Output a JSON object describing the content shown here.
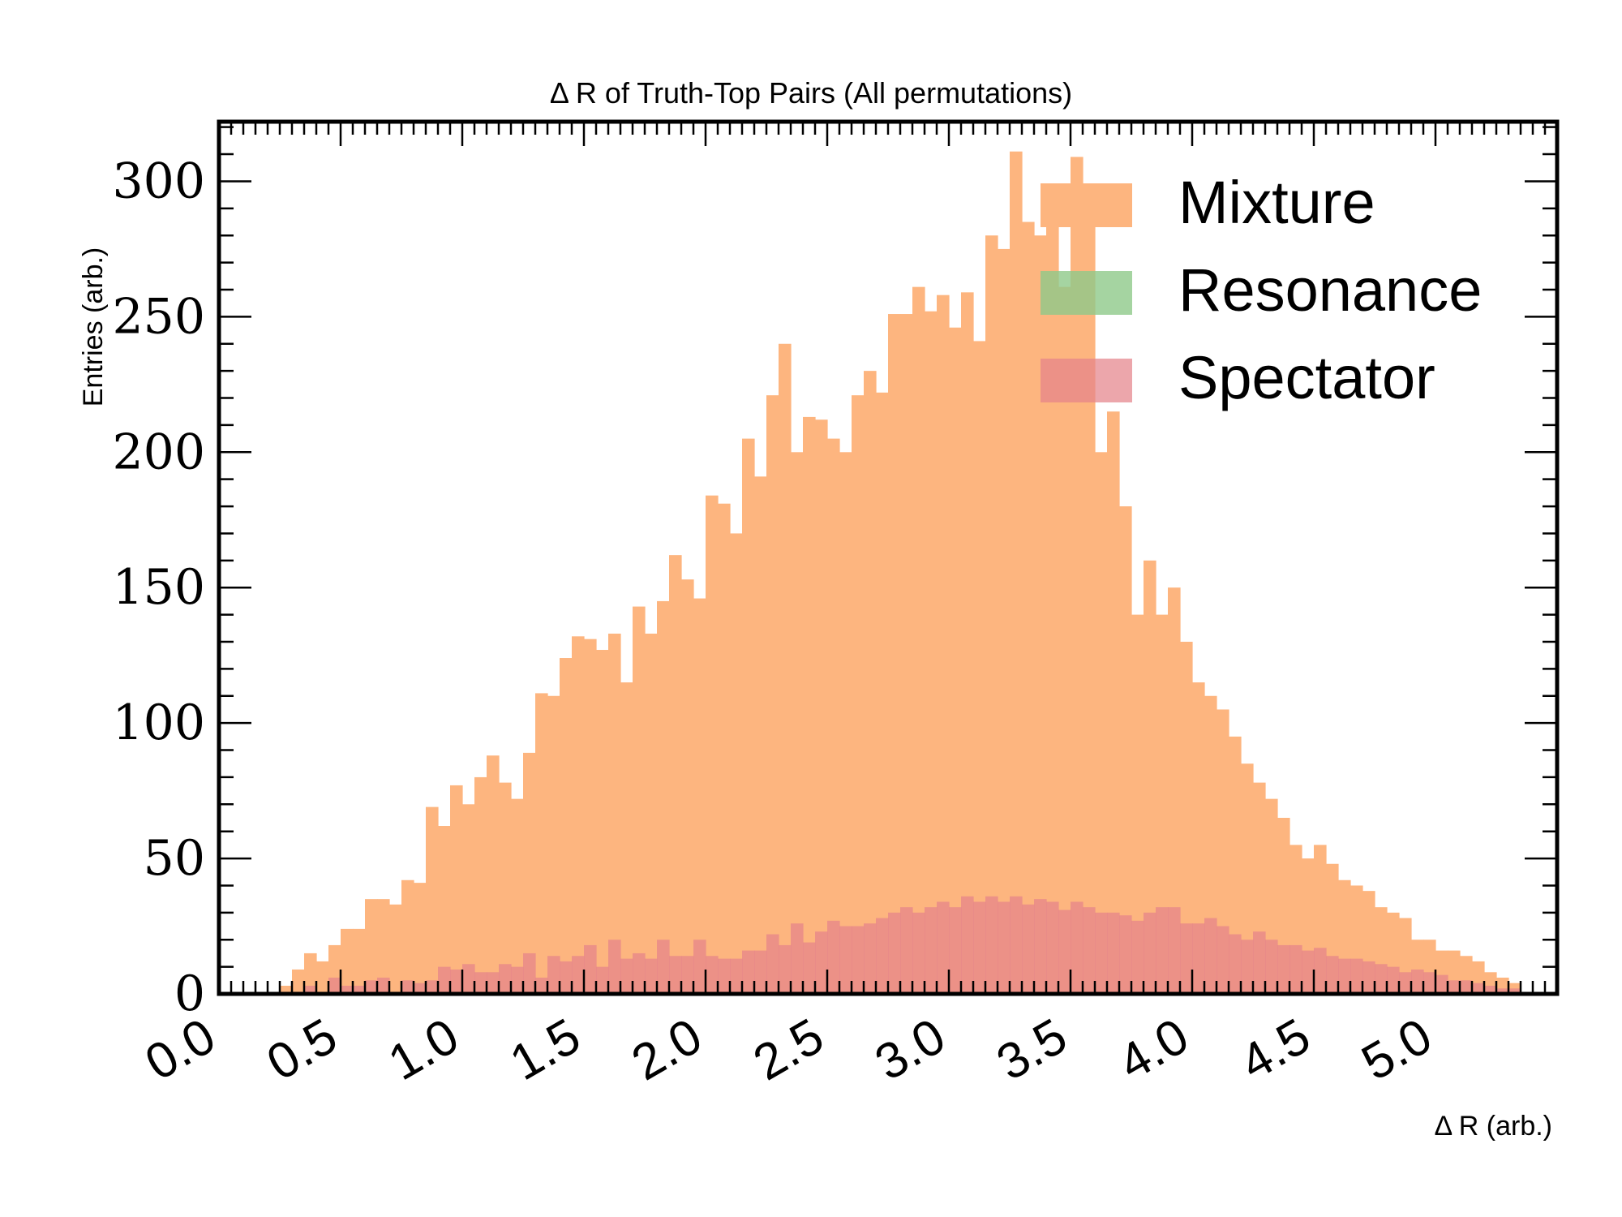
{
  "chart_data": {
    "type": "bar",
    "title": "Δ R of Truth-Top Pairs (All permutations)",
    "xlabel": "Δ R (arb.)",
    "ylabel": "Entries (arb.)",
    "xlim": [
      0.0,
      5.5
    ],
    "ylim": [
      0,
      322
    ],
    "bin_width": 0.05,
    "x_start": 0.25,
    "xticks": [
      "0.0",
      "0.5",
      "1.0",
      "1.5",
      "2.0",
      "2.5",
      "3.0",
      "3.5",
      "4.0",
      "4.5",
      "5.0"
    ],
    "yticks": [
      "0",
      "50",
      "100",
      "150",
      "200",
      "250",
      "300"
    ],
    "legend_position": "top-right",
    "series": [
      {
        "name": "Mixture",
        "color": "#fdb57f",
        "values": [
          3,
          9,
          15,
          12,
          18,
          24,
          24,
          35,
          35,
          33,
          42,
          41,
          69,
          62,
          77,
          70,
          80,
          88,
          78,
          72,
          89,
          111,
          110,
          124,
          132,
          131,
          127,
          133,
          115,
          143,
          133,
          145,
          162,
          153,
          146,
          184,
          181,
          170,
          205,
          191,
          221,
          240,
          200,
          213,
          212,
          205,
          200,
          221,
          230,
          222,
          251,
          251,
          261,
          252,
          258,
          246,
          259,
          241,
          280,
          275,
          311,
          285,
          280,
          299,
          261,
          309,
          290,
          200,
          215,
          180,
          140,
          160,
          140,
          150,
          130,
          115,
          110,
          105,
          95,
          85,
          78,
          72,
          65,
          55,
          50,
          55,
          48,
          42,
          40,
          38,
          32,
          30,
          28,
          20,
          20,
          16,
          16,
          14,
          12,
          8,
          6,
          4
        ]
      },
      {
        "name": "Resonance",
        "color": "#8fc98a",
        "values": [
          0,
          0,
          0,
          0,
          0,
          0,
          0,
          0,
          0,
          0,
          0,
          0,
          0,
          0,
          0,
          0,
          0,
          0,
          0,
          0,
          0,
          0,
          0,
          0,
          0,
          0,
          0,
          0,
          0,
          0,
          0,
          0,
          0,
          0,
          0,
          0,
          0,
          0,
          0,
          0,
          0,
          0,
          0,
          0,
          0,
          0,
          0,
          0,
          0,
          0,
          0,
          0,
          0,
          0,
          0,
          0,
          0,
          0,
          0,
          0,
          0,
          0,
          0,
          0,
          0,
          0,
          0,
          0,
          0,
          0,
          0,
          0,
          0,
          0,
          0,
          0,
          0,
          0,
          0,
          0,
          0,
          0,
          0,
          0,
          0,
          0,
          0,
          0,
          0,
          0,
          0,
          0,
          0,
          0,
          0,
          0,
          0,
          0,
          0,
          0,
          0,
          0
        ]
      },
      {
        "name": "Spectator",
        "color": "#e5838b",
        "values": [
          0,
          0,
          3,
          0,
          6,
          3,
          3,
          5,
          6,
          0,
          5,
          4,
          5,
          10,
          9,
          11,
          8,
          8,
          11,
          10,
          15,
          6,
          14,
          12,
          14,
          18,
          10,
          20,
          13,
          15,
          13,
          20,
          14,
          14,
          20,
          14,
          13,
          13,
          16,
          16,
          22,
          18,
          26,
          19,
          23,
          27,
          25,
          25,
          26,
          28,
          30,
          32,
          30,
          32,
          34,
          32,
          36,
          34,
          36,
          34,
          36,
          33,
          35,
          34,
          31,
          34,
          32,
          30,
          30,
          29,
          27,
          30,
          32,
          32,
          26,
          26,
          28,
          25,
          22,
          20,
          23,
          20,
          18,
          18,
          16,
          17,
          14,
          13,
          13,
          12,
          11,
          10,
          8,
          9,
          8,
          7,
          5,
          5,
          4,
          3,
          2,
          2
        ]
      }
    ]
  }
}
